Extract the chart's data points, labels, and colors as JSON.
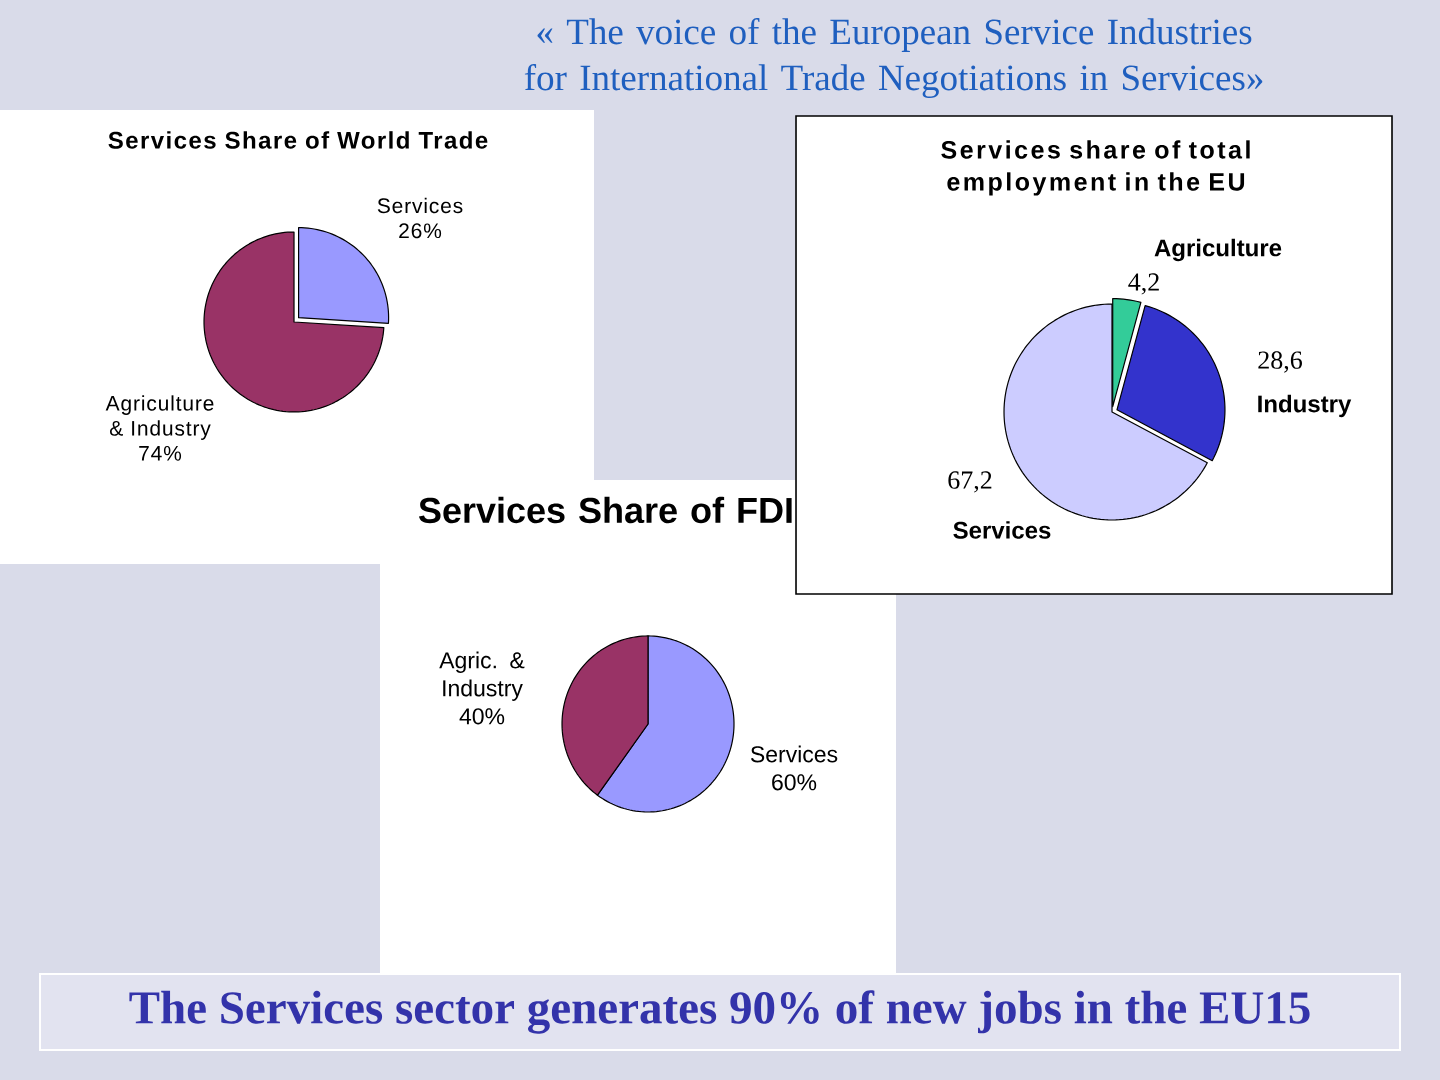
{
  "chart_data": [
    {
      "type": "other",
      "title": "« The voice of the European Service Industries for International Trade Negotiations in Services»",
      "annotations": [
        "The Services sector generates 90% of new jobs in the EU15"
      ]
    },
    {
      "type": "pie",
      "title": "Services Share of World Trade",
      "categories": [
        "Services",
        "Agriculture & Industry"
      ],
      "values": [
        26,
        74
      ],
      "value_labels": [
        "26%",
        "74%"
      ],
      "colors": [
        "#9999ff",
        "#993366"
      ]
    },
    {
      "type": "pie",
      "title": "Services share of total employment in the EU",
      "categories": [
        "Agriculture",
        "Industry",
        "Services"
      ],
      "values": [
        4.2,
        28.6,
        67.2
      ],
      "value_labels": [
        "4,2",
        "28,6",
        "67,2"
      ],
      "colors": [
        "#33cc99",
        "#3333cc",
        "#ccccff"
      ]
    },
    {
      "type": "pie",
      "title": "Services Share of FDI",
      "categories": [
        "Services",
        "Agric. & Industry"
      ],
      "values": [
        60,
        40
      ],
      "value_labels": [
        "60%",
        "40%"
      ],
      "colors": [
        "#9999ff",
        "#993366"
      ]
    }
  ]
}
